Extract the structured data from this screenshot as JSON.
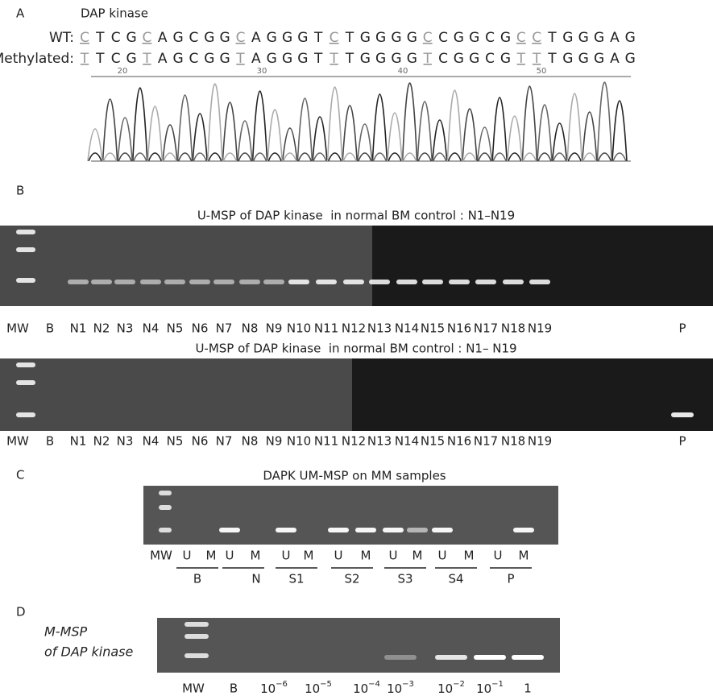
{
  "panel_a": {
    "label": "A",
    "title": "DAP kinase",
    "wt_label": "WT:",
    "methylated_label": "Methylated:",
    "wt_sequence": "CTCGCAGCGGCAGGGTCTGGGGCCGGCGCCTGGGAG",
    "methylated_sequence": "TTCGTAGCGGTAGGGTTTGGGGTCGGCGTTTGGGAG",
    "positions": [
      "20",
      "30",
      "40",
      "50"
    ]
  },
  "panel_b": {
    "label": "B",
    "gels": [
      {
        "title": "U-MSP of DAP kinase  in normal BM control : N1–N19",
        "lanes": [
          "MW",
          "B",
          "N1",
          "N2",
          "N3",
          "N4",
          "N5",
          "N6",
          "N7",
          "N8",
          "N9",
          "N10",
          "N11",
          "N12",
          "N13",
          "N14",
          "N15",
          "N16",
          "N17",
          "N18",
          "N19",
          "P"
        ]
      },
      {
        "title": "U-MSP of DAP kinase  in normal BM control : N1– N19",
        "lanes": [
          "MW",
          "B",
          "N1",
          "N2",
          "N3",
          "N4",
          "N5",
          "N6",
          "N7",
          "N8",
          "N9",
          "N10",
          "N11",
          "N12",
          "N13",
          "N14",
          "N15",
          "N16",
          "N17",
          "N18",
          "N19",
          "P"
        ]
      }
    ]
  },
  "panel_c": {
    "label": "C",
    "title": "DAPK UM-MSP on MM samples",
    "lanes": [
      "MW",
      "U",
      "M",
      "U",
      "M",
      "U",
      "M",
      "U",
      "M",
      "U",
      "M",
      "U",
      "M",
      "U",
      "M"
    ],
    "groups": [
      "B",
      "N",
      "S1",
      "S2",
      "S3",
      "S4",
      "P"
    ]
  },
  "panel_d": {
    "label": "D",
    "title_line1": "M-MSP",
    "title_line2": "of DAP kinase",
    "lanes": [
      "MW",
      "B",
      {
        "base": "10",
        "exponent": "−6"
      },
      {
        "base": "10",
        "exponent": "−5"
      },
      {
        "base": "10",
        "exponent": "−4"
      },
      {
        "base": "10",
        "exponent": "−3"
      },
      {
        "base": "10",
        "exponent": "−2"
      },
      {
        "base": "10",
        "exponent": "−1"
      },
      "1"
    ]
  }
}
